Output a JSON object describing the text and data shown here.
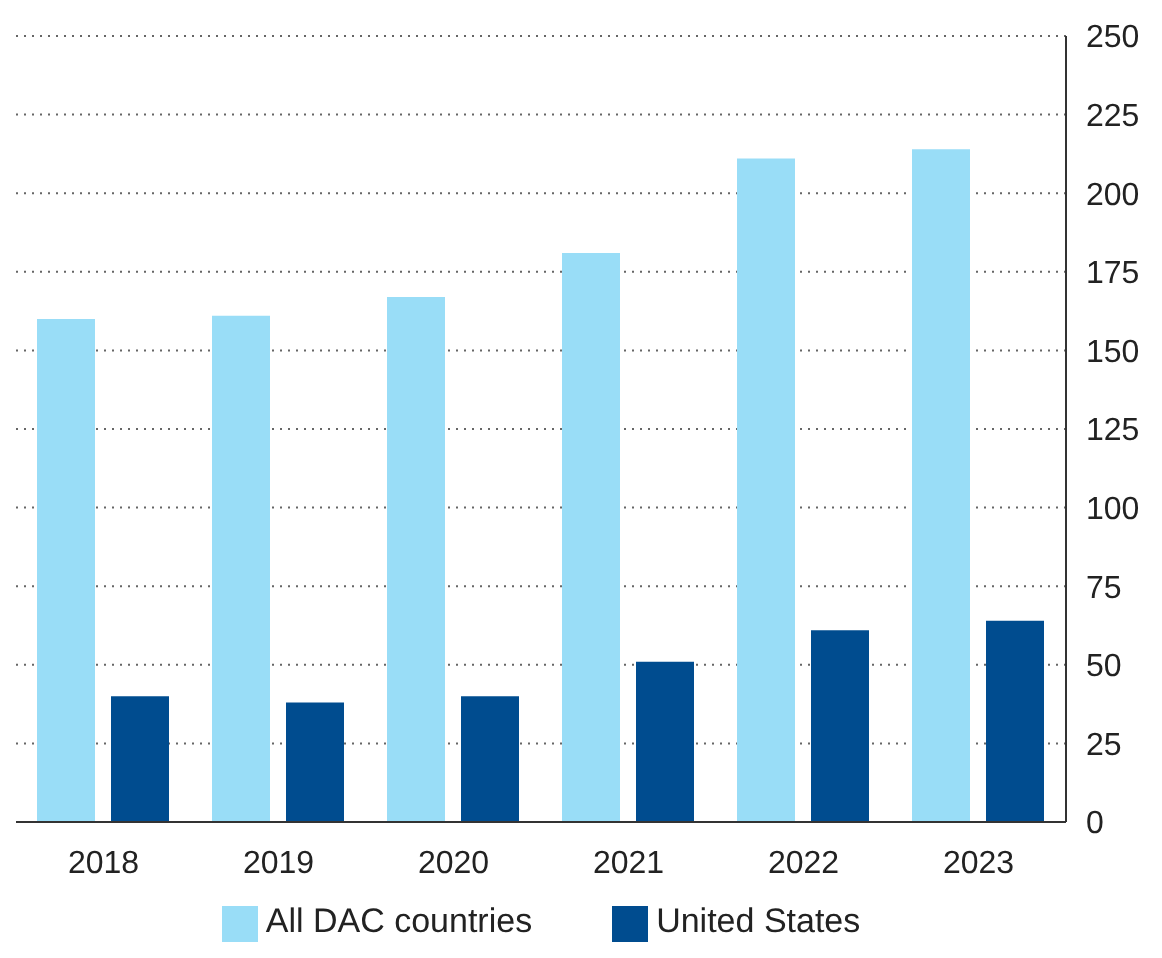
{
  "chart_data": {
    "type": "bar",
    "categories": [
      "2018",
      "2019",
      "2020",
      "2021",
      "2022",
      "2023"
    ],
    "series": [
      {
        "name": "All DAC countries",
        "color": "#99ddf7",
        "values": [
          160,
          161,
          167,
          181,
          211,
          214
        ]
      },
      {
        "name": "United States",
        "color": "#004c8f",
        "values": [
          40,
          38,
          40,
          51,
          61,
          64
        ]
      }
    ],
    "ylim": [
      0,
      250
    ],
    "yticks": [
      0,
      25,
      50,
      75,
      100,
      125,
      150,
      175,
      200,
      225,
      250
    ],
    "grid": "y",
    "legend": "bottom"
  }
}
